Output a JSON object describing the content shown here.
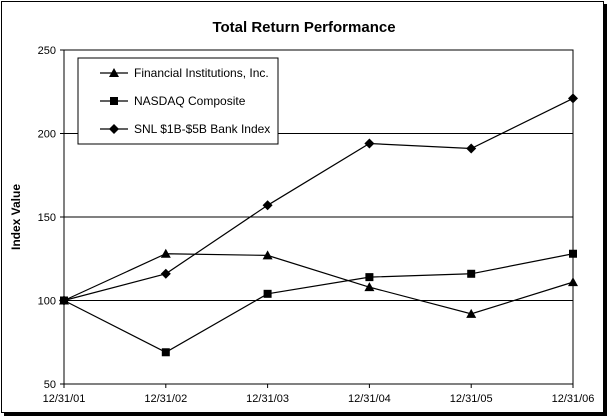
{
  "chart_data": {
    "type": "line",
    "title": "Total Return Performance",
    "ylabel": "Index Value",
    "xlabel": "",
    "categories": [
      "12/31/01",
      "12/31/02",
      "12/31/03",
      "12/31/04",
      "12/31/05",
      "12/31/06"
    ],
    "ylim": [
      50,
      250
    ],
    "yticks": [
      50,
      100,
      150,
      200,
      250
    ],
    "grid": "horizontal",
    "legend_position": "top-left",
    "series": [
      {
        "name": "Financial Institutions, Inc.",
        "marker": "triangle",
        "values": [
          100,
          128,
          127,
          108,
          92,
          111
        ]
      },
      {
        "name": "NASDAQ Composite",
        "marker": "square",
        "values": [
          100,
          69,
          104,
          114,
          116,
          128
        ]
      },
      {
        "name": "SNL $1B-$5B Bank Index",
        "marker": "diamond",
        "values": [
          100,
          116,
          157,
          194,
          191,
          221
        ]
      }
    ],
    "line_color": "#000000"
  }
}
